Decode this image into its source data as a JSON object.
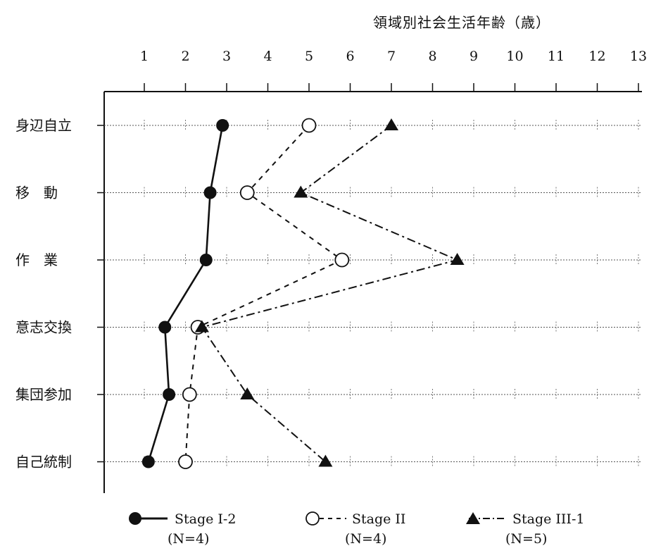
{
  "chart_data": {
    "type": "line",
    "orientation": "horizontal-values",
    "xlabel": "領域別社会生活年齢（歳）",
    "x_ticks": [
      1,
      2,
      3,
      4,
      5,
      6,
      7,
      8,
      9,
      10,
      11,
      12,
      13
    ],
    "xlim": [
      1,
      13
    ],
    "categories": [
      "身辺自立",
      "移　動",
      "作　業",
      "意志交換",
      "集団参加",
      "自己統制"
    ],
    "grid": "dotted horizontal lines per category",
    "legend_position": "bottom",
    "series": [
      {
        "name": "Stage I-2",
        "n_label": "(N=4)",
        "marker": "filled-circle",
        "line": "solid",
        "values": [
          2.9,
          2.6,
          2.5,
          1.5,
          1.6,
          1.1
        ]
      },
      {
        "name": "Stage II",
        "n_label": "(N=4)",
        "marker": "open-circle",
        "line": "dashed",
        "values": [
          5.0,
          3.5,
          5.8,
          2.3,
          2.1,
          2.0
        ]
      },
      {
        "name": "Stage III-1",
        "n_label": "(N=5)",
        "marker": "filled-triangle",
        "line": "dash-dot",
        "values": [
          7.0,
          4.8,
          8.6,
          2.4,
          3.5,
          5.4
        ]
      }
    ]
  }
}
